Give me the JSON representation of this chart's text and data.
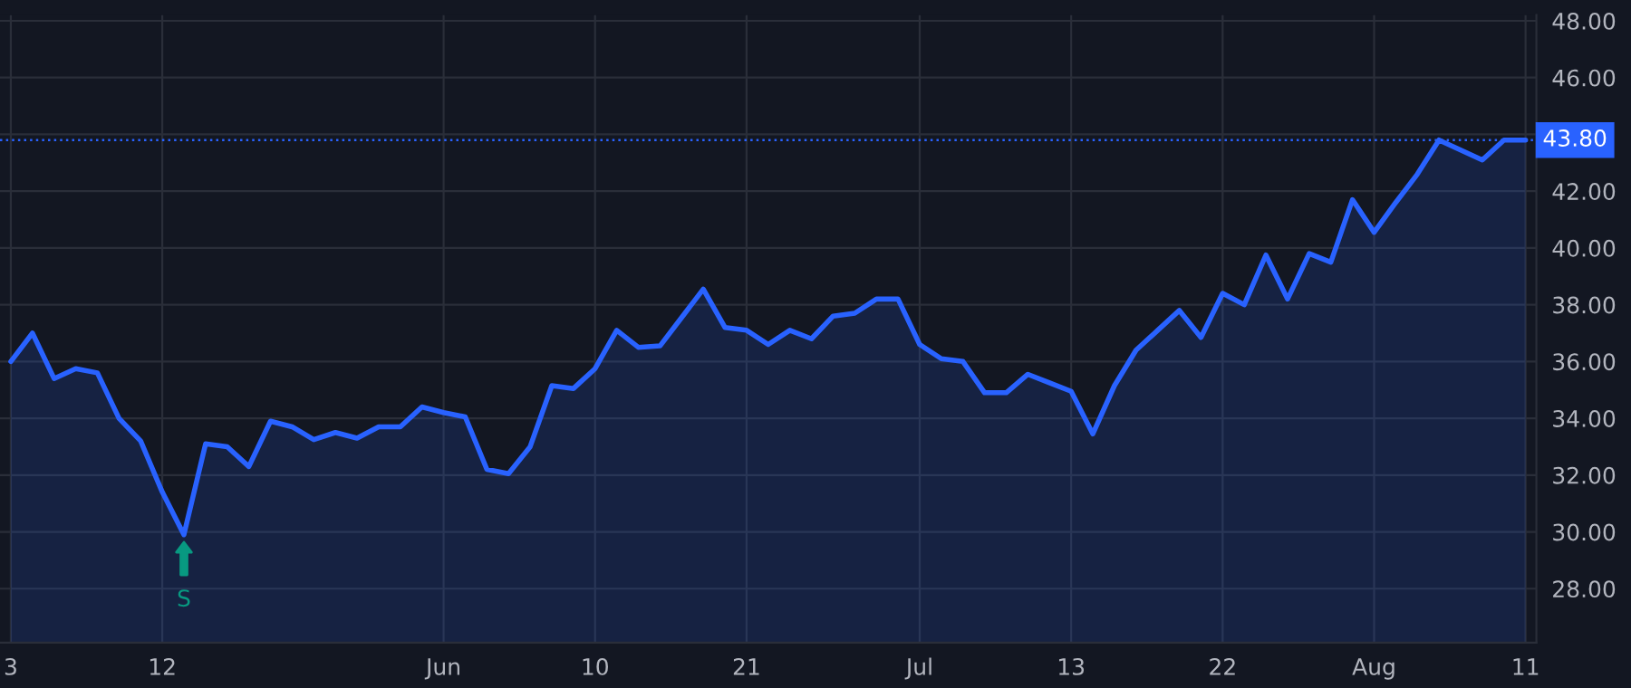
{
  "chart_data": {
    "type": "area",
    "categories": [
      "3",
      null,
      null,
      null,
      null,
      null,
      null,
      "12",
      null,
      null,
      null,
      null,
      null,
      null,
      null,
      null,
      null,
      null,
      null,
      null,
      "Jun",
      null,
      null,
      null,
      null,
      null,
      null,
      "10",
      null,
      null,
      null,
      null,
      null,
      null,
      "21",
      null,
      null,
      null,
      null,
      null,
      null,
      null,
      "Jul",
      null,
      null,
      null,
      null,
      null,
      null,
      "13",
      null,
      null,
      null,
      null,
      null,
      null,
      "22",
      null,
      null,
      null,
      null,
      null,
      null,
      "Aug",
      null,
      null,
      null,
      null,
      null,
      null,
      "11"
    ],
    "series": [
      {
        "color": "#2962ff",
        "values": [
          36.0,
          37.0,
          35.4,
          35.75,
          35.6,
          34.0,
          33.2,
          31.4,
          29.9,
          33.1,
          33.0,
          32.3,
          33.9,
          33.7,
          33.25,
          33.5,
          33.3,
          33.7,
          33.7,
          34.4,
          34.2,
          34.05,
          32.2,
          32.05,
          33.0,
          35.15,
          35.05,
          35.75,
          37.1,
          36.5,
          36.55,
          37.55,
          38.55,
          37.2,
          37.1,
          36.6,
          37.1,
          36.8,
          37.6,
          37.7,
          38.2,
          38.2,
          36.6,
          36.1,
          36.0,
          34.9,
          34.9,
          35.55,
          35.25,
          34.95,
          33.45,
          35.15,
          36.4,
          37.1,
          37.8,
          36.85,
          38.4,
          38.0,
          39.75,
          38.2,
          39.8,
          39.5,
          41.7,
          40.55,
          41.6,
          42.6,
          43.8,
          43.45,
          43.1,
          43.8,
          43.8
        ]
      }
    ],
    "ylim": [
      26.1,
      48.2
    ],
    "yticks": [
      {
        "value": 28,
        "label": "28.00"
      },
      {
        "value": 30,
        "label": "30.00"
      },
      {
        "value": 32,
        "label": "32.00"
      },
      {
        "value": 34,
        "label": "34.00"
      },
      {
        "value": 36,
        "label": "36.00"
      },
      {
        "value": 38,
        "label": "38.00"
      },
      {
        "value": 40,
        "label": "40.00"
      },
      {
        "value": 42,
        "label": "42.00"
      },
      {
        "value": 44,
        "label": null
      },
      {
        "value": 46,
        "label": "46.00"
      },
      {
        "value": 48,
        "label": "48.00"
      }
    ],
    "ref_lines": [
      {
        "axis": "y",
        "value": 43.8,
        "label": "43.80",
        "color": "#2962ff",
        "line_style": "dotted"
      }
    ],
    "annotations": [
      {
        "text": "S",
        "y": 29.9
      }
    ],
    "grid": true
  }
}
